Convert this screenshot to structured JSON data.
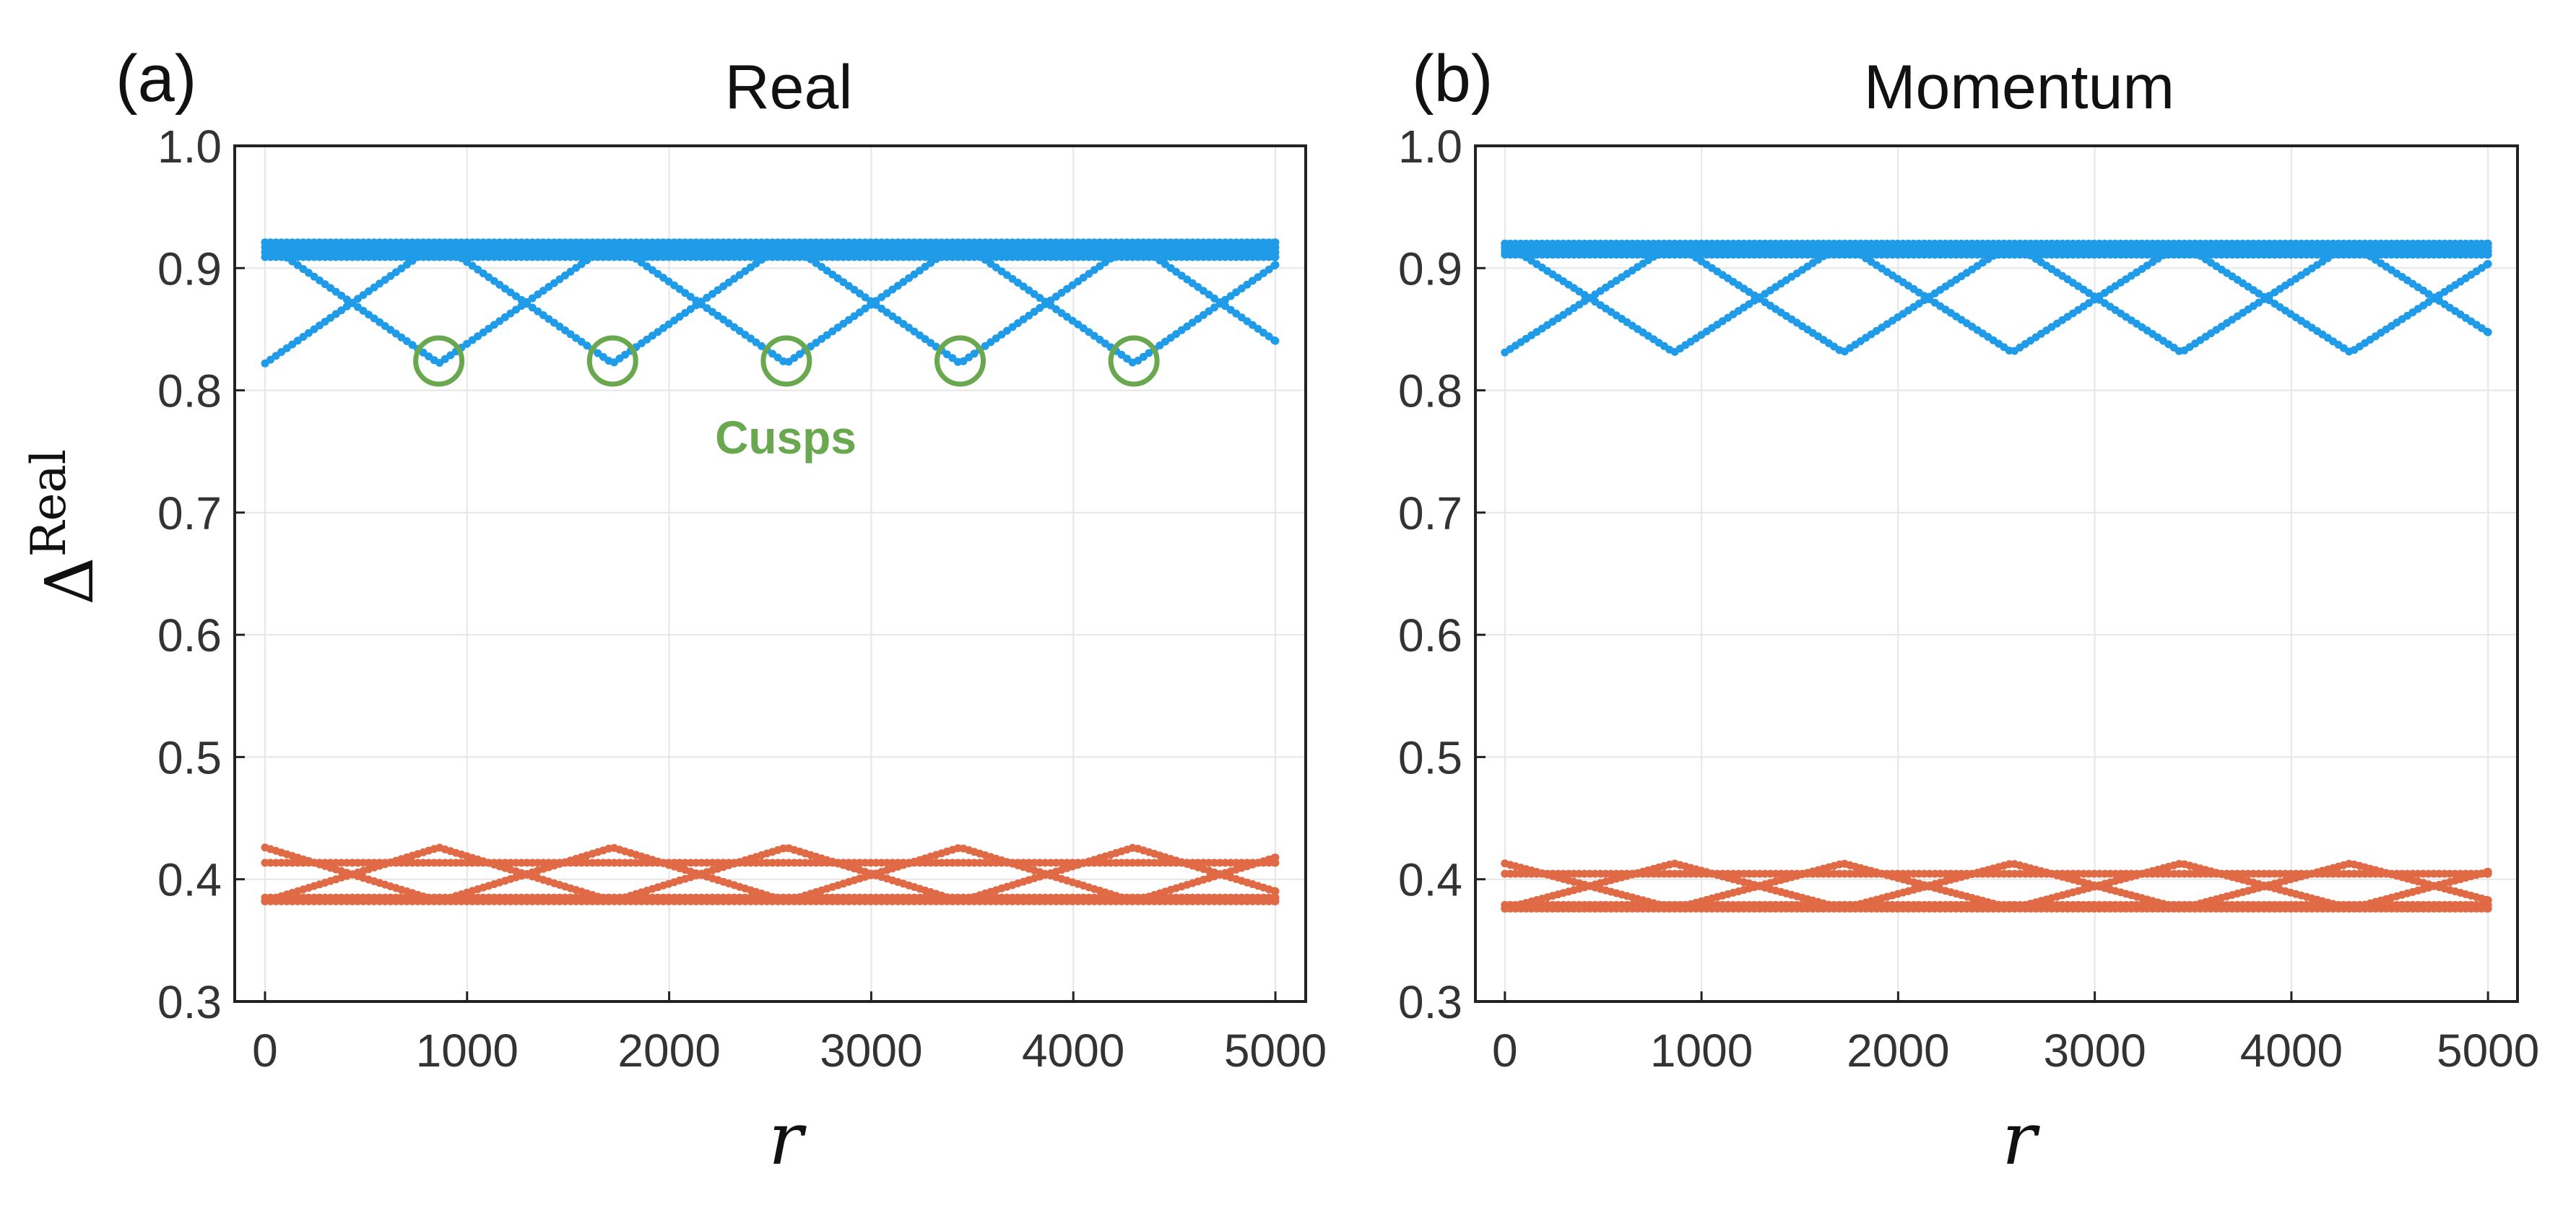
{
  "figure": {
    "ylabel_main": "Δ",
    "ylabel_sup": "Real"
  },
  "chart_data": [
    {
      "type": "scatter",
      "panel_label": "(a)",
      "title": "Real",
      "xlabel": "r",
      "ylabel": "Δ^Real",
      "xlim": [
        -150,
        5150
      ],
      "ylim": [
        0.3,
        1.0
      ],
      "xticks": [
        0,
        1000,
        2000,
        3000,
        4000,
        5000
      ],
      "yticks": [
        0.3,
        0.4,
        0.5,
        0.6,
        0.7,
        0.8,
        0.9,
        1.0
      ],
      "xtick_labels": [
        "0",
        "1000",
        "2000",
        "3000",
        "4000",
        "5000"
      ],
      "ytick_labels": [
        "0.3",
        "0.4",
        "0.5",
        "0.6",
        "0.7",
        "0.8",
        "0.9",
        "1.0"
      ],
      "grid": true,
      "period": 860,
      "series": [
        {
          "name": "upper branch",
          "color": "#1f9be8",
          "flat_levels": [
            0.921,
            0.917,
            0.913,
            0.909
          ],
          "zigzag_min": 0.822,
          "zigzag_max": 0.921,
          "zigzag_start": 0.822
        },
        {
          "name": "lower branch",
          "color": "#e06a45",
          "flat_levels": [
            0.385,
            0.382,
            0.4135
          ],
          "zigzag_min": 0.382,
          "zigzag_max": 0.426,
          "zigzag_start": 0.426
        }
      ],
      "annotation": {
        "text": "Cusps",
        "color": "#6aa84f",
        "cusp_x": [
          860,
          1720,
          2580,
          3440,
          4300
        ],
        "cusp_y": 0.824
      }
    },
    {
      "type": "scatter",
      "panel_label": "(b)",
      "title": "Momentum",
      "xlabel": "r",
      "ylabel": "",
      "xlim": [
        -150,
        5150
      ],
      "ylim": [
        0.3,
        1.0
      ],
      "xticks": [
        0,
        1000,
        2000,
        3000,
        4000,
        5000
      ],
      "yticks": [
        0.3,
        0.4,
        0.5,
        0.6,
        0.7,
        0.8,
        0.9,
        1.0
      ],
      "xtick_labels": [
        "0",
        "1000",
        "2000",
        "3000",
        "4000",
        "5000"
      ],
      "ytick_labels": [
        "0.3",
        "0.4",
        "0.5",
        "0.6",
        "0.7",
        "0.8",
        "0.9",
        "1.0"
      ],
      "grid": true,
      "period": 860,
      "series": [
        {
          "name": "upper branch",
          "color": "#1f9be8",
          "flat_levels": [
            0.92,
            0.917,
            0.914,
            0.911
          ],
          "zigzag_min": 0.831,
          "zigzag_max": 0.92,
          "zigzag_start": 0.831
        },
        {
          "name": "lower branch",
          "color": "#e06a45",
          "flat_levels": [
            0.379,
            0.376,
            0.4045
          ],
          "zigzag_min": 0.376,
          "zigzag_max": 0.413,
          "zigzag_start": 0.413
        }
      ]
    }
  ]
}
